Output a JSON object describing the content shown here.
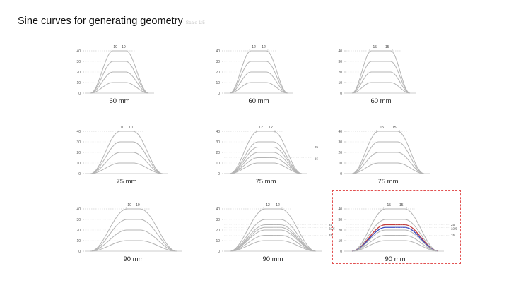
{
  "title": "Sine curves for generating geometry",
  "subtitle": "Scale 1:5",
  "highlight_color": "#e25252",
  "curve_color": "#b4b4b4",
  "highlight_curve_colors": [
    "#c23b3b",
    "#3b4cc0"
  ],
  "panels": [
    {
      "caption": "60 mm",
      "y_ticks": [
        "40",
        "30",
        "20",
        "10",
        "0"
      ],
      "top_labels": [
        "10",
        "10"
      ],
      "side_labels": [],
      "highlighted": false
    },
    {
      "caption": "60 mm",
      "y_ticks": [
        "40",
        "30",
        "20",
        "10",
        "0"
      ],
      "top_labels": [
        "12",
        "12"
      ],
      "side_labels": [],
      "highlighted": false
    },
    {
      "caption": "60 mm",
      "y_ticks": [
        "40",
        "30",
        "20",
        "10",
        "0"
      ],
      "top_labels": [
        "15",
        "15"
      ],
      "side_labels": [],
      "highlighted": false
    },
    {
      "caption": "75 mm",
      "y_ticks": [
        "40",
        "30",
        "20",
        "10",
        "0"
      ],
      "top_labels": [
        "10",
        "10"
      ],
      "side_labels": [],
      "highlighted": false
    },
    {
      "caption": "75 mm",
      "y_ticks": [
        "40",
        "30",
        "20",
        "10",
        "0"
      ],
      "top_labels": [
        "12",
        "12"
      ],
      "side_labels": [
        "25",
        "15"
      ],
      "highlighted": false
    },
    {
      "caption": "75 mm",
      "y_ticks": [
        "40",
        "30",
        "20",
        "10",
        "0"
      ],
      "top_labels": [
        "15",
        "15"
      ],
      "side_labels": [],
      "highlighted": false
    },
    {
      "caption": "90 mm",
      "y_ticks": [
        "40",
        "30",
        "20",
        "10",
        "0"
      ],
      "top_labels": [
        "10",
        "10"
      ],
      "side_labels": [],
      "highlighted": false
    },
    {
      "caption": "90 mm",
      "y_ticks": [
        "40",
        "30",
        "20",
        "10",
        "0"
      ],
      "top_labels": [
        "12",
        "12"
      ],
      "side_labels": [
        "25",
        "22.5",
        "15"
      ],
      "highlighted": false
    },
    {
      "caption": "90 mm",
      "y_ticks": [
        "40",
        "30",
        "20",
        "10",
        "0"
      ],
      "top_labels": [
        "15",
        "15"
      ],
      "side_labels": [
        "25",
        "22.5",
        "15"
      ],
      "highlighted": true
    }
  ]
}
